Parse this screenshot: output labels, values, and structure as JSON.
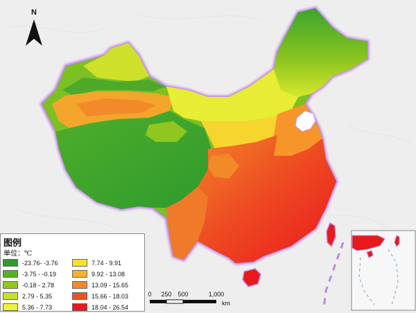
{
  "map": {
    "north_label": "N",
    "legend": {
      "title": "图例",
      "unit": "单位：℃",
      "items": [
        {
          "label": "-23.76- -3.76",
          "color": "#2e9a2e"
        },
        {
          "label": "-3.75 - -0.19",
          "color": "#57b028"
        },
        {
          "label": "-0.18 - 2.78",
          "color": "#90c81f"
        },
        {
          "label": "2.79 - 5.35",
          "color": "#c6e22a"
        },
        {
          "label": "5.36 - 7.73",
          "color": "#eef23a"
        },
        {
          "label": "7.74 - 9.91",
          "color": "#f7e12f"
        },
        {
          "label": "9.92 - 13.08",
          "color": "#f6b22c"
        },
        {
          "label": "13.09 - 15.65",
          "color": "#f28a2a"
        },
        {
          "label": "15.66 - 18.03",
          "color": "#ee5322"
        },
        {
          "label": "18.04 - 26.54",
          "color": "#e8191c"
        }
      ]
    },
    "scale_bar": {
      "ticks": [
        "0",
        "250",
        "500",
        "1,000"
      ],
      "unit": "km"
    },
    "colors": {
      "background": "#eeeeee",
      "border_glow": "#c58ee6",
      "cold": "#2e9a2e",
      "warm": "#e8191c"
    }
  }
}
